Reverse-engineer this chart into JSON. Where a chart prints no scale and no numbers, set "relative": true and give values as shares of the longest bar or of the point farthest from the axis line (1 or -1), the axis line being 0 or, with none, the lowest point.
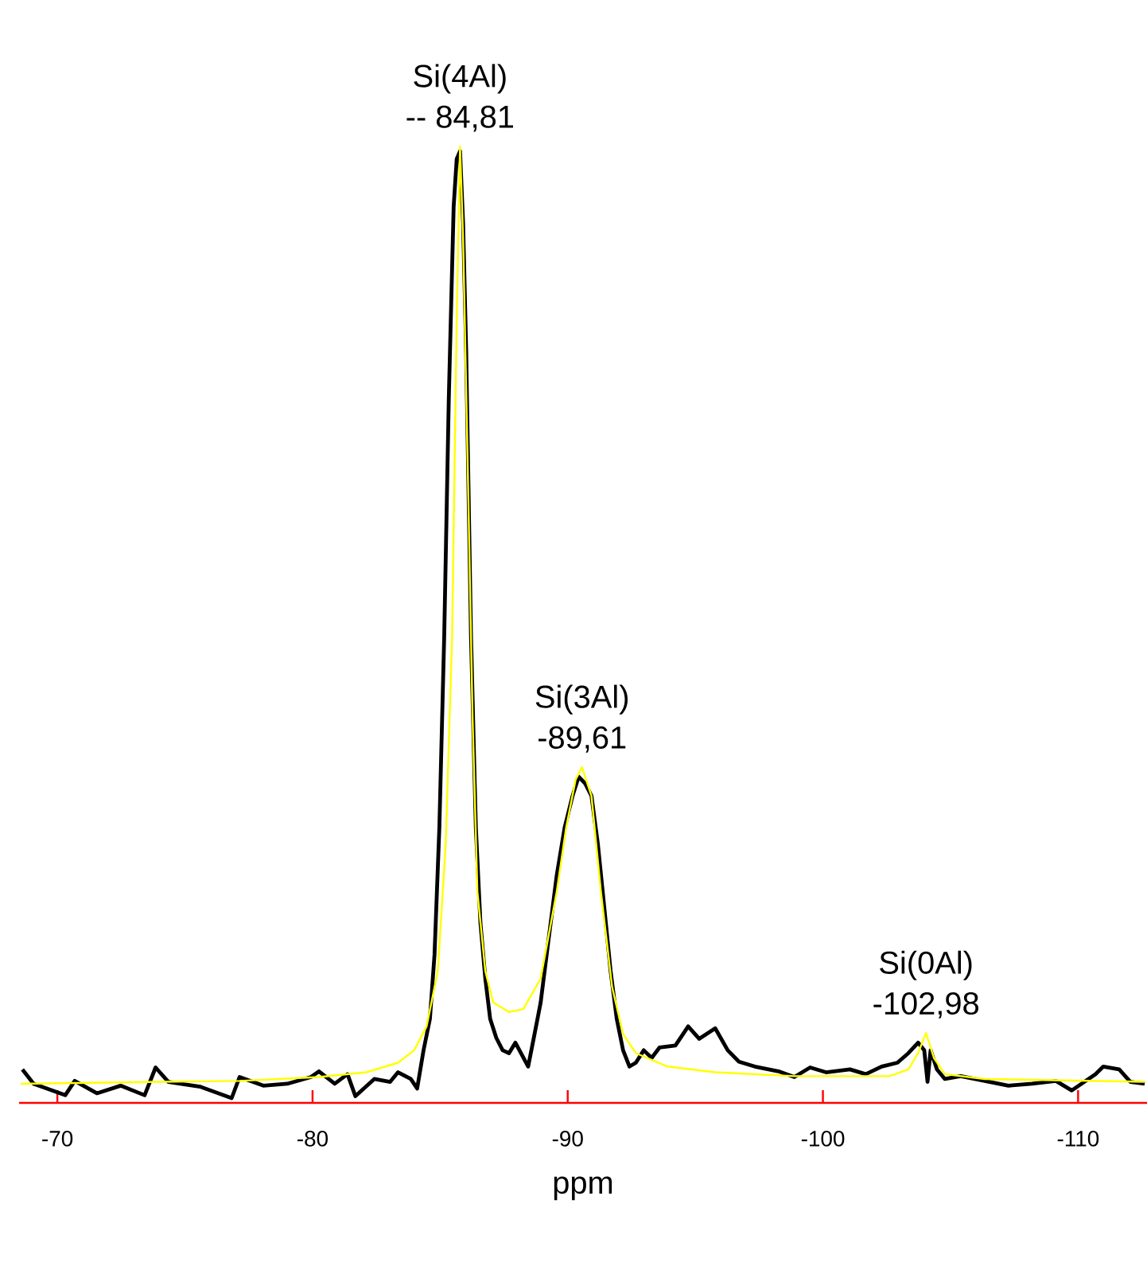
{
  "chart_data": {
    "type": "line",
    "xlabel": "ppm",
    "relative": true,
    "xlim": [
      -68.5,
      -112.7
    ],
    "xticks": [
      -70,
      -80,
      -90,
      -100,
      -110
    ],
    "series": [
      {
        "color": "#000000",
        "x": [
          -68.63,
          -69.07,
          -70.31,
          -70.68,
          -71.55,
          -72.48,
          -73.42,
          -73.85,
          -74.35,
          -75.59,
          -76.83,
          -77.14,
          -78.07,
          -79.01,
          -79.94,
          -80.25,
          -80.87,
          -81.37,
          -81.68,
          -82.42,
          -83.04,
          -83.35,
          -83.85,
          -84.1,
          -84.35,
          -84.6,
          -84.78,
          -84.97,
          -85.16,
          -85.34,
          -85.53,
          -85.65,
          -85.78,
          -85.9,
          -86.02,
          -86.21,
          -86.4,
          -86.58,
          -86.77,
          -86.96,
          -87.2,
          -87.45,
          -87.7,
          -87.95,
          -88.45,
          -88.7,
          -88.94,
          -89.25,
          -89.57,
          -89.88,
          -90.19,
          -90.43,
          -90.68,
          -90.93,
          -91.18,
          -91.43,
          -91.68,
          -91.92,
          -92.17,
          -92.42,
          -92.67,
          -92.98,
          -93.29,
          -93.6,
          -94.22,
          -94.72,
          -95.15,
          -95.78,
          -96.27,
          -96.71,
          -97.33,
          -98.26,
          -98.88,
          -99.5,
          -100.12,
          -101.06,
          -101.68,
          -102.3,
          -102.92,
          -103.35,
          -103.73,
          -103.97,
          -104.1,
          -104.22,
          -104.47,
          -104.78,
          -105.4,
          -106.34,
          -107.27,
          -108.2,
          -109.13,
          -109.75,
          -110.68,
          -110.99,
          -111.61,
          -112.05,
          -112.61
        ],
        "values": [
          0.035,
          0.02,
          0.008,
          0.023,
          0.01,
          0.018,
          0.008,
          0.037,
          0.022,
          0.017,
          0.005,
          0.027,
          0.018,
          0.02,
          0.027,
          0.033,
          0.02,
          0.03,
          0.007,
          0.025,
          0.022,
          0.032,
          0.025,
          0.015,
          0.055,
          0.088,
          0.155,
          0.288,
          0.488,
          0.737,
          0.937,
          0.987,
          0.995,
          0.92,
          0.787,
          0.488,
          0.288,
          0.188,
          0.13,
          0.088,
          0.068,
          0.055,
          0.052,
          0.063,
          0.038,
          0.072,
          0.105,
          0.171,
          0.238,
          0.288,
          0.321,
          0.341,
          0.334,
          0.321,
          0.271,
          0.205,
          0.138,
          0.088,
          0.055,
          0.038,
          0.042,
          0.055,
          0.047,
          0.058,
          0.06,
          0.08,
          0.067,
          0.078,
          0.055,
          0.043,
          0.038,
          0.033,
          0.027,
          0.037,
          0.032,
          0.035,
          0.03,
          0.038,
          0.042,
          0.052,
          0.063,
          0.055,
          0.022,
          0.055,
          0.035,
          0.025,
          0.028,
          0.023,
          0.018,
          0.02,
          0.023,
          0.013,
          0.03,
          0.038,
          0.035,
          0.022,
          0.02
        ]
      },
      {
        "color": "#ffff00",
        "x": [
          -68.57,
          -74.04,
          -77.14,
          -80.25,
          -82.11,
          -83.35,
          -83.98,
          -84.47,
          -84.91,
          -85.22,
          -85.47,
          -85.65,
          -85.78,
          -85.9,
          -86.09,
          -86.27,
          -86.46,
          -86.77,
          -87.08,
          -87.7,
          -88.26,
          -88.94,
          -89.57,
          -89.94,
          -90.31,
          -90.56,
          -90.93,
          -91.3,
          -91.74,
          -92.17,
          -92.67,
          -93.91,
          -95.78,
          -98.88,
          -102.61,
          -103.35,
          -103.73,
          -104.04,
          -104.35,
          -104.78,
          -106.34,
          -112.61
        ],
        "values": [
          0.02,
          0.022,
          0.023,
          0.027,
          0.032,
          0.042,
          0.055,
          0.08,
          0.138,
          0.271,
          0.488,
          0.82,
          1.0,
          0.903,
          0.654,
          0.404,
          0.221,
          0.138,
          0.105,
          0.095,
          0.098,
          0.13,
          0.221,
          0.288,
          0.338,
          0.351,
          0.321,
          0.221,
          0.121,
          0.072,
          0.052,
          0.038,
          0.032,
          0.028,
          0.028,
          0.035,
          0.052,
          0.073,
          0.047,
          0.03,
          0.025,
          0.022
        ]
      }
    ],
    "annotations": [
      {
        "text": "Si(4Al)",
        "x": -85.78,
        "y": 1.0
      },
      {
        "text": "-- 84,81",
        "x": -85.78,
        "y": 1.0
      },
      {
        "text": "Si(3Al)",
        "x": -90.56,
        "y": 0.351
      },
      {
        "text": "-89,61",
        "x": -90.56,
        "y": 0.351
      },
      {
        "text": "Si(0Al)",
        "x": -104.04,
        "y": 0.073
      },
      {
        "text": "-102,98",
        "x": -104.04,
        "y": 0.073
      }
    ]
  }
}
